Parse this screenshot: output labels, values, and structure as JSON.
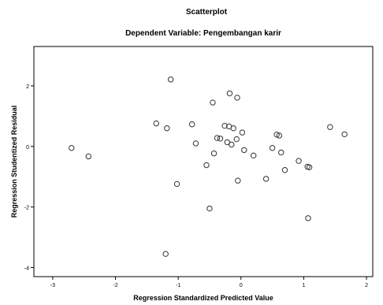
{
  "chart_data": {
    "type": "scatter",
    "title": "Scatterplot",
    "subtitle": "Dependent Variable: Pengembangan karir",
    "xlabel": "Regression Standardized Predicted Value",
    "ylabel": "Regression Studentized Residual",
    "xlim": [
      -3.3,
      2.1
    ],
    "ylim": [
      -4.3,
      3.3
    ],
    "x_ticks": [
      -3,
      -2,
      -1,
      0,
      1,
      2
    ],
    "y_ticks": [
      2,
      0,
      -2,
      -4
    ],
    "x_tick_labels": [
      "-3",
      "-2",
      "-1",
      "0",
      "1",
      "2"
    ],
    "y_tick_labels": [
      "2",
      "0",
      "-2",
      "-4"
    ],
    "grid": false,
    "marker": "open-circle",
    "points": [
      {
        "x": -2.7,
        "y": -0.05
      },
      {
        "x": -2.43,
        "y": -0.33
      },
      {
        "x": -1.35,
        "y": 0.76
      },
      {
        "x": -1.18,
        "y": 0.6
      },
      {
        "x": -1.12,
        "y": 2.21
      },
      {
        "x": -1.02,
        "y": -1.24
      },
      {
        "x": -1.2,
        "y": -3.55
      },
      {
        "x": -0.78,
        "y": 0.73
      },
      {
        "x": -0.72,
        "y": 0.1
      },
      {
        "x": -0.55,
        "y": -0.62
      },
      {
        "x": -0.5,
        "y": -2.05
      },
      {
        "x": -0.45,
        "y": 1.45
      },
      {
        "x": -0.43,
        "y": -0.23
      },
      {
        "x": -0.38,
        "y": 0.28
      },
      {
        "x": -0.33,
        "y": 0.26
      },
      {
        "x": -0.26,
        "y": 0.68
      },
      {
        "x": -0.22,
        "y": 0.14
      },
      {
        "x": -0.19,
        "y": 0.66
      },
      {
        "x": -0.18,
        "y": 1.75
      },
      {
        "x": -0.15,
        "y": 0.06
      },
      {
        "x": -0.12,
        "y": 0.6
      },
      {
        "x": -0.07,
        "y": 0.24
      },
      {
        "x": -0.06,
        "y": 1.61
      },
      {
        "x": -0.05,
        "y": -1.13
      },
      {
        "x": 0.02,
        "y": 0.46
      },
      {
        "x": 0.05,
        "y": -0.12
      },
      {
        "x": 0.2,
        "y": -0.3
      },
      {
        "x": 0.4,
        "y": -1.07
      },
      {
        "x": 0.5,
        "y": -0.05
      },
      {
        "x": 0.57,
        "y": 0.39
      },
      {
        "x": 0.61,
        "y": 0.36
      },
      {
        "x": 0.64,
        "y": -0.2
      },
      {
        "x": 0.7,
        "y": -0.78
      },
      {
        "x": 0.92,
        "y": -0.48
      },
      {
        "x": 1.06,
        "y": -0.67
      },
      {
        "x": 1.09,
        "y": -0.69
      },
      {
        "x": 1.07,
        "y": -2.37
      },
      {
        "x": 1.42,
        "y": 0.64
      },
      {
        "x": 1.65,
        "y": 0.4
      }
    ]
  }
}
